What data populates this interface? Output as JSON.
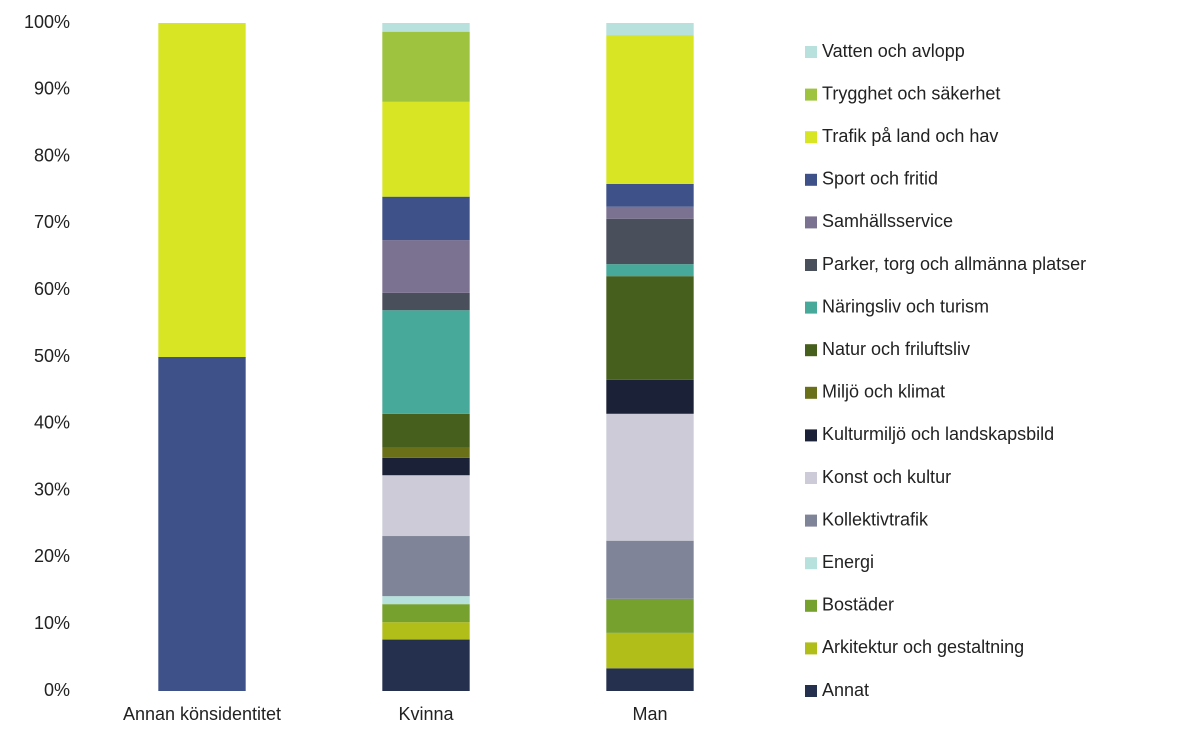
{
  "chart_data": {
    "type": "stacked_bar",
    "categories": [
      "Annan könsidentitet",
      "Kvinna",
      "Man"
    ],
    "ylim": [
      0,
      100
    ],
    "yticks": [
      {
        "value": 0,
        "label": "0%"
      },
      {
        "value": 10,
        "label": "10%"
      },
      {
        "value": 20,
        "label": "20%"
      },
      {
        "value": 30,
        "label": "30%"
      },
      {
        "value": 40,
        "label": "40%"
      },
      {
        "value": 50,
        "label": "50%"
      },
      {
        "value": 60,
        "label": "60%"
      },
      {
        "value": 70,
        "label": "70%"
      },
      {
        "value": 80,
        "label": "80%"
      },
      {
        "value": 90,
        "label": "90%"
      },
      {
        "value": 100,
        "label": "100%"
      }
    ],
    "legend": "right",
    "series": [
      {
        "name": "Annat",
        "color": "#25304f",
        "values": [
          0,
          7.7,
          3.4
        ]
      },
      {
        "name": "Arkitektur och gestaltning",
        "color": "#b1bd18",
        "values": [
          0,
          2.6,
          5.3
        ]
      },
      {
        "name": "Bostäder",
        "color": "#77a12e",
        "values": [
          0,
          2.7,
          5.1
        ]
      },
      {
        "name": "Energi",
        "color": "#b7e1dc",
        "values": [
          0,
          1.2,
          0
        ]
      },
      {
        "name": "Kollektivtrafik",
        "color": "#7f8498",
        "values": [
          0,
          9.0,
          8.7
        ]
      },
      {
        "name": "Konst och kultur",
        "color": "#cccbd7",
        "values": [
          0,
          9.1,
          19.0
        ]
      },
      {
        "name": "Kulturmiljö och landskapsbild",
        "color": "#1b2137",
        "values": [
          0,
          2.6,
          5.1
        ]
      },
      {
        "name": "Miljö och klimat",
        "color": "#6a7018",
        "values": [
          0,
          1.5,
          0
        ]
      },
      {
        "name": "Natur och friluftsliv",
        "color": "#475f1c",
        "values": [
          0,
          5.1,
          15.5
        ]
      },
      {
        "name": "Näringsliv och turism",
        "color": "#47a99a",
        "values": [
          0,
          15.5,
          1.8
        ]
      },
      {
        "name": "Parker, torg och allmänna platser",
        "color": "#4a4f5c",
        "values": [
          0,
          2.6,
          6.8
        ]
      },
      {
        "name": "Samhällsservice",
        "color": "#7b7190",
        "values": [
          0,
          7.9,
          1.8
        ]
      },
      {
        "name": "Sport och fritid",
        "color": "#3e5289",
        "values": [
          50,
          6.5,
          3.4
        ]
      },
      {
        "name": "Trafik på land och hav",
        "color": "#d8e524",
        "values": [
          50,
          14.2,
          22.3
        ]
      },
      {
        "name": "Trygghet och säkerhet",
        "color": "#9dc33f",
        "values": [
          0,
          10.5,
          0
        ]
      },
      {
        "name": "Vatten och avlopp",
        "color": "#b8e0dc",
        "values": [
          0,
          1.3,
          1.8
        ]
      }
    ]
  }
}
